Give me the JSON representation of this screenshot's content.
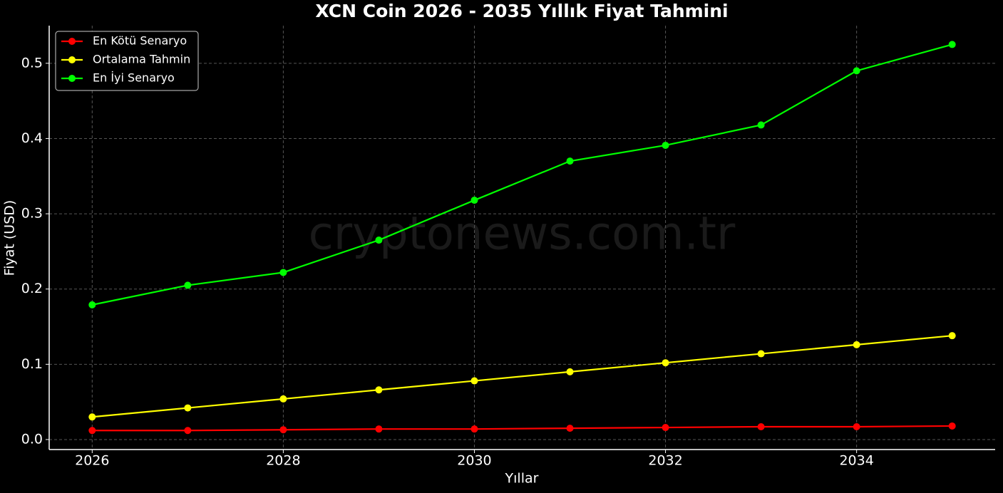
{
  "chart_data": {
    "type": "line",
    "title": "XCN Coin 2026 - 2035 Yıllık Fiyat Tahmini",
    "xlabel": "Yıllar",
    "ylabel": "Fiyat (USD)",
    "watermark": "cryptonews.com.tr",
    "x": [
      2026,
      2027,
      2028,
      2029,
      2030,
      2031,
      2032,
      2033,
      2034,
      2035
    ],
    "series": [
      {
        "name": "En Kötü Senaryo",
        "color": "#ff0000",
        "values": [
          0.012,
          0.012,
          0.013,
          0.014,
          0.014,
          0.015,
          0.016,
          0.017,
          0.017,
          0.018
        ]
      },
      {
        "name": "Ortalama Tahmin",
        "color": "#ffff00",
        "values": [
          0.03,
          0.042,
          0.054,
          0.066,
          0.078,
          0.09,
          0.102,
          0.114,
          0.126,
          0.138
        ]
      },
      {
        "name": "En İyi Senaryo",
        "color": "#00ff00",
        "values": [
          0.179,
          0.205,
          0.222,
          0.265,
          0.318,
          0.37,
          0.391,
          0.418,
          0.49,
          0.525
        ]
      }
    ],
    "xlim": [
      2025.55,
      2035.45
    ],
    "ylim": [
      -0.0133,
      0.55
    ],
    "xticks": [
      2026,
      2028,
      2030,
      2032,
      2034
    ],
    "yticks": [
      {
        "value": 0,
        "label": "0.0"
      },
      0.1,
      0.2,
      0.3,
      0.4,
      0.5
    ],
    "grid": true,
    "legend": "upper left"
  }
}
